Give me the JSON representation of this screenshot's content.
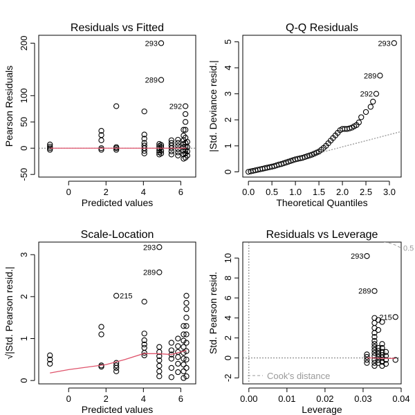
{
  "chart_data": [
    {
      "type": "scatter",
      "title": "Residuals vs Fitted",
      "xlabel": "Predicted values",
      "ylabel": "Pearson Residuals",
      "xlim": [
        -1.6,
        6.8
      ],
      "ylim": [
        -55,
        215
      ],
      "xticks": [
        0,
        2,
        4,
        6
      ],
      "yticks": [
        -50,
        0,
        50,
        100,
        200
      ],
      "reference_line": {
        "y": 0,
        "style": "dotted"
      },
      "points": [
        [
          -1,
          -3
        ],
        [
          -1,
          0
        ],
        [
          -1,
          3
        ],
        [
          -1,
          7
        ],
        [
          1.75,
          -3
        ],
        [
          1.75,
          0
        ],
        [
          1.75,
          15
        ],
        [
          1.75,
          25
        ],
        [
          1.75,
          33
        ],
        [
          2.55,
          -3
        ],
        [
          2.55,
          0
        ],
        [
          2.55,
          2
        ],
        [
          2.55,
          80
        ],
        [
          4.05,
          -10
        ],
        [
          4.05,
          -5
        ],
        [
          4.05,
          0
        ],
        [
          4.05,
          5
        ],
        [
          4.05,
          10
        ],
        [
          4.05,
          18
        ],
        [
          4.05,
          26
        ],
        [
          4.05,
          70
        ],
        [
          4.85,
          -12
        ],
        [
          4.85,
          -8
        ],
        [
          4.85,
          -4
        ],
        [
          4.85,
          0
        ],
        [
          4.85,
          4
        ],
        [
          4.85,
          8
        ],
        [
          4.95,
          -10
        ],
        [
          4.95,
          -5
        ],
        [
          4.95,
          2
        ],
        [
          4.95,
          6
        ],
        [
          4.95,
          130
        ],
        [
          4.95,
          200
        ],
        [
          5.5,
          -12
        ],
        [
          5.5,
          -6
        ],
        [
          5.5,
          0
        ],
        [
          5.5,
          5
        ],
        [
          5.5,
          10
        ],
        [
          5.5,
          15
        ],
        [
          5.85,
          -14
        ],
        [
          5.85,
          -8
        ],
        [
          5.85,
          -2
        ],
        [
          5.85,
          4
        ],
        [
          5.85,
          10
        ],
        [
          5.85,
          16
        ],
        [
          6.15,
          -20
        ],
        [
          6.15,
          -12
        ],
        [
          6.15,
          -5
        ],
        [
          6.15,
          2
        ],
        [
          6.15,
          8
        ],
        [
          6.15,
          15
        ],
        [
          6.15,
          24
        ],
        [
          6.15,
          35
        ],
        [
          6.25,
          -18
        ],
        [
          6.25,
          -10
        ],
        [
          6.25,
          -4
        ],
        [
          6.25,
          3
        ],
        [
          6.25,
          10
        ],
        [
          6.25,
          20
        ],
        [
          6.25,
          35
        ],
        [
          6.25,
          50
        ],
        [
          6.25,
          65
        ],
        [
          6.25,
          80
        ],
        [
          6.35,
          -14
        ],
        [
          6.35,
          -6
        ],
        [
          6.35,
          2
        ],
        [
          6.35,
          12
        ]
      ],
      "smooth": [
        [
          -1,
          0
        ],
        [
          1,
          0
        ],
        [
          2,
          0
        ],
        [
          3,
          0
        ],
        [
          4,
          0
        ],
        [
          5,
          0
        ],
        [
          6.3,
          0
        ]
      ],
      "annotations": [
        {
          "label": "293",
          "x": 4.95,
          "y": 200
        },
        {
          "label": "289",
          "x": 4.95,
          "y": 130
        },
        {
          "label": "292",
          "x": 6.25,
          "y": 80
        }
      ]
    },
    {
      "type": "scatter",
      "title": "Q-Q Residuals",
      "xlabel": "Theoretical Quantiles",
      "ylabel": "|Std. Deviance resid.|",
      "xlim": [
        -0.12,
        3.25
      ],
      "ylim": [
        -0.2,
        5.25
      ],
      "xticks": [
        0.0,
        0.5,
        1.0,
        1.5,
        2.0,
        2.5,
        3.0
      ],
      "yticks": [
        0,
        1,
        2,
        3,
        4,
        5
      ],
      "reference_line": {
        "x0": 0,
        "y0": 0.02,
        "x1": 3.25,
        "y1": 1.55,
        "style": "dotted"
      },
      "points": [
        [
          0.0,
          0.0
        ],
        [
          0.05,
          0.02
        ],
        [
          0.1,
          0.04
        ],
        [
          0.15,
          0.06
        ],
        [
          0.2,
          0.08
        ],
        [
          0.25,
          0.1
        ],
        [
          0.3,
          0.12
        ],
        [
          0.35,
          0.14
        ],
        [
          0.4,
          0.16
        ],
        [
          0.45,
          0.18
        ],
        [
          0.5,
          0.2
        ],
        [
          0.55,
          0.22
        ],
        [
          0.6,
          0.25
        ],
        [
          0.65,
          0.28
        ],
        [
          0.7,
          0.3
        ],
        [
          0.75,
          0.33
        ],
        [
          0.8,
          0.36
        ],
        [
          0.85,
          0.39
        ],
        [
          0.9,
          0.42
        ],
        [
          0.95,
          0.45
        ],
        [
          1.0,
          0.48
        ],
        [
          1.05,
          0.5
        ],
        [
          1.1,
          0.52
        ],
        [
          1.15,
          0.54
        ],
        [
          1.2,
          0.57
        ],
        [
          1.25,
          0.6
        ],
        [
          1.3,
          0.63
        ],
        [
          1.35,
          0.66
        ],
        [
          1.4,
          0.7
        ],
        [
          1.45,
          0.74
        ],
        [
          1.5,
          0.78
        ],
        [
          1.55,
          0.85
        ],
        [
          1.6,
          0.92
        ],
        [
          1.65,
          1.0
        ],
        [
          1.7,
          1.1
        ],
        [
          1.75,
          1.2
        ],
        [
          1.8,
          1.3
        ],
        [
          1.85,
          1.4
        ],
        [
          1.9,
          1.5
        ],
        [
          1.95,
          1.6
        ],
        [
          2.0,
          1.65
        ],
        [
          2.05,
          1.65
        ],
        [
          2.1,
          1.65
        ],
        [
          2.15,
          1.67
        ],
        [
          2.2,
          1.7
        ],
        [
          2.25,
          1.75
        ],
        [
          2.3,
          1.8
        ],
        [
          2.35,
          1.9
        ],
        [
          2.4,
          2.1
        ],
        [
          2.5,
          2.3
        ],
        [
          2.6,
          2.5
        ],
        [
          2.65,
          2.7
        ],
        [
          2.72,
          3.0
        ],
        [
          2.8,
          3.7
        ],
        [
          3.1,
          4.95
        ]
      ],
      "annotations": [
        {
          "label": "293",
          "x": 3.1,
          "y": 4.95
        },
        {
          "label": "289",
          "x": 2.8,
          "y": 3.7
        },
        {
          "label": "292",
          "x": 2.72,
          "y": 3.0
        }
      ]
    },
    {
      "type": "scatter",
      "title": "Scale-Location",
      "xlabel": "Predicted values",
      "ylabel": "√|Std. Pearson resid.|",
      "xlim": [
        -1.6,
        6.8
      ],
      "ylim": [
        -0.08,
        3.3
      ],
      "xticks": [
        0,
        2,
        4,
        6
      ],
      "yticks": [
        0.0,
        1.0,
        2.0,
        3.0
      ],
      "points": [
        [
          -1,
          0.4
        ],
        [
          -1,
          0.5
        ],
        [
          -1,
          0.6
        ],
        [
          1.75,
          0.33
        ],
        [
          1.75,
          0.36
        ],
        [
          1.75,
          1.1
        ],
        [
          1.75,
          1.28
        ],
        [
          2.55,
          0.22
        ],
        [
          2.55,
          0.3
        ],
        [
          2.55,
          0.36
        ],
        [
          2.55,
          0.42
        ],
        [
          2.55,
          2.02
        ],
        [
          4.05,
          0.6
        ],
        [
          4.05,
          0.66
        ],
        [
          4.05,
          0.78
        ],
        [
          4.05,
          0.86
        ],
        [
          4.05,
          0.96
        ],
        [
          4.05,
          1.12
        ],
        [
          4.05,
          1.88
        ],
        [
          4.85,
          0.1
        ],
        [
          4.85,
          0.22
        ],
        [
          4.85,
          0.35
        ],
        [
          4.85,
          0.48
        ],
        [
          4.85,
          0.58
        ],
        [
          4.85,
          0.68
        ],
        [
          4.85,
          0.8
        ],
        [
          4.85,
          2.58
        ],
        [
          4.85,
          3.18
        ],
        [
          5.5,
          0.08
        ],
        [
          5.5,
          0.3
        ],
        [
          5.5,
          0.52
        ],
        [
          5.5,
          0.62
        ],
        [
          5.5,
          0.72
        ],
        [
          5.5,
          0.9
        ],
        [
          5.85,
          0.2
        ],
        [
          5.85,
          0.4
        ],
        [
          5.85,
          0.56
        ],
        [
          5.85,
          0.68
        ],
        [
          5.85,
          0.82
        ],
        [
          5.85,
          1.0
        ],
        [
          6.15,
          0.06
        ],
        [
          6.15,
          0.22
        ],
        [
          6.15,
          0.38
        ],
        [
          6.15,
          0.52
        ],
        [
          6.15,
          0.66
        ],
        [
          6.15,
          0.8
        ],
        [
          6.15,
          0.95
        ],
        [
          6.15,
          1.1
        ],
        [
          6.15,
          1.3
        ],
        [
          6.3,
          0.1
        ],
        [
          6.3,
          0.3
        ],
        [
          6.3,
          0.5
        ],
        [
          6.3,
          0.7
        ],
        [
          6.3,
          0.9
        ],
        [
          6.3,
          1.1
        ],
        [
          6.3,
          1.3
        ],
        [
          6.3,
          1.5
        ],
        [
          6.3,
          1.7
        ],
        [
          6.3,
          1.85
        ],
        [
          6.3,
          2.02
        ]
      ],
      "smooth": [
        [
          -1,
          0.18
        ],
        [
          0,
          0.26
        ],
        [
          1,
          0.32
        ],
        [
          2,
          0.38
        ],
        [
          3,
          0.5
        ],
        [
          4,
          0.64
        ],
        [
          4.8,
          0.64
        ],
        [
          5.5,
          0.62
        ],
        [
          6.0,
          0.68
        ],
        [
          6.3,
          0.72
        ]
      ],
      "annotations": [
        {
          "label": "293",
          "x": 4.85,
          "y": 3.18
        },
        {
          "label": "289",
          "x": 4.85,
          "y": 2.58
        },
        {
          "label": "215",
          "x": 2.55,
          "y": 2.02
        }
      ]
    },
    {
      "type": "scatter",
      "title": "Residuals vs Leverage",
      "xlabel": "Leverage",
      "ylabel": "Std. Pearson resid.",
      "xlim": [
        -0.0016,
        0.04
      ],
      "ylim": [
        -2.6,
        11.6
      ],
      "xticks": [
        0.0,
        0.01,
        0.02,
        0.03,
        0.04
      ],
      "yticks": [
        -2,
        0,
        2,
        4,
        6,
        8,
        10
      ],
      "reference_lines": [
        {
          "y": 0,
          "style": "dotted"
        },
        {
          "x": 0,
          "style": "dotted"
        }
      ],
      "cooks_contour": {
        "label": "0.5",
        "points": [
          [
            0.0355,
            11.6
          ],
          [
            0.037,
            11.5
          ],
          [
            0.0385,
            11.3
          ],
          [
            0.04,
            11.0
          ]
        ]
      },
      "legend": {
        "label": "Cook's distance",
        "position": "bottom-left"
      },
      "points": [
        [
          0.031,
          -0.5
        ],
        [
          0.031,
          -0.2
        ],
        [
          0.031,
          0.1
        ],
        [
          0.031,
          0.35
        ],
        [
          0.031,
          10.2
        ],
        [
          0.033,
          -0.8
        ],
        [
          0.033,
          -0.5
        ],
        [
          0.033,
          -0.2
        ],
        [
          0.033,
          0.2
        ],
        [
          0.033,
          0.5
        ],
        [
          0.033,
          0.8
        ],
        [
          0.033,
          1.1
        ],
        [
          0.033,
          1.4
        ],
        [
          0.033,
          1.7
        ],
        [
          0.033,
          2.1
        ],
        [
          0.033,
          2.5
        ],
        [
          0.033,
          3.0
        ],
        [
          0.033,
          3.5
        ],
        [
          0.033,
          4.0
        ],
        [
          0.033,
          6.7
        ],
        [
          0.034,
          -0.5
        ],
        [
          0.034,
          -0.2
        ],
        [
          0.034,
          0.1
        ],
        [
          0.034,
          0.4
        ],
        [
          0.034,
          0.7
        ],
        [
          0.034,
          1.0
        ],
        [
          0.034,
          2.8
        ],
        [
          0.034,
          3.8
        ],
        [
          0.035,
          -0.8
        ],
        [
          0.035,
          -0.4
        ],
        [
          0.035,
          0.0
        ],
        [
          0.035,
          0.3
        ],
        [
          0.035,
          0.6
        ],
        [
          0.035,
          1.0
        ],
        [
          0.035,
          1.4
        ],
        [
          0.035,
          3.6
        ],
        [
          0.036,
          -0.6
        ],
        [
          0.036,
          -0.2
        ],
        [
          0.036,
          0.2
        ],
        [
          0.036,
          0.6
        ],
        [
          0.0385,
          -0.2
        ],
        [
          0.0385,
          4.1
        ]
      ],
      "smooth": [
        [
          0.031,
          0.0
        ],
        [
          0.033,
          0.0
        ],
        [
          0.035,
          -0.05
        ],
        [
          0.0365,
          -0.05
        ],
        [
          0.0385,
          -0.05
        ]
      ],
      "annotations": [
        {
          "label": "293",
          "x": 0.031,
          "y": 10.2
        },
        {
          "label": "289",
          "x": 0.033,
          "y": 6.7
        },
        {
          "label": "215",
          "x": 0.0385,
          "y": 4.1
        }
      ]
    }
  ]
}
